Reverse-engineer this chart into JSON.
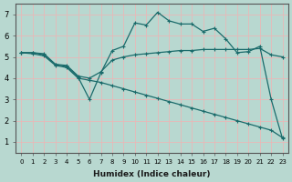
{
  "xlabel": "Humidex (Indice chaleur)",
  "xlim": [
    -0.5,
    23.5
  ],
  "ylim": [
    0.5,
    7.5
  ],
  "yticks": [
    1,
    2,
    3,
    4,
    5,
    6,
    7
  ],
  "xticks": [
    0,
    1,
    2,
    3,
    4,
    5,
    6,
    7,
    8,
    9,
    10,
    11,
    12,
    13,
    14,
    15,
    16,
    17,
    18,
    19,
    20,
    21,
    22,
    23
  ],
  "bg_color": "#b8d8d0",
  "grid_color": "#e8b8b8",
  "line_color": "#1a6b6b",
  "lines": [
    {
      "x": [
        0,
        1,
        2,
        3,
        4,
        5,
        6,
        7,
        8,
        9,
        10,
        11,
        12,
        13,
        14,
        15,
        16,
        17,
        18,
        19,
        20,
        21,
        22,
        23
      ],
      "y": [
        5.2,
        5.2,
        5.1,
        4.65,
        4.6,
        4.1,
        4.0,
        4.3,
        4.85,
        5.0,
        5.1,
        5.15,
        5.2,
        5.25,
        5.3,
        5.3,
        5.35,
        5.35,
        5.35,
        5.35,
        5.35,
        5.4,
        5.1,
        5.0
      ]
    },
    {
      "x": [
        0,
        1,
        2,
        3,
        4,
        5,
        6,
        7,
        8,
        9,
        10,
        11,
        12,
        13,
        14,
        15,
        16,
        17,
        18,
        19,
        20,
        21,
        22,
        23
      ],
      "y": [
        5.2,
        5.2,
        5.15,
        4.65,
        4.55,
        4.05,
        3.0,
        4.25,
        5.3,
        5.5,
        6.6,
        6.5,
        7.1,
        6.7,
        6.55,
        6.55,
        6.2,
        6.35,
        5.85,
        5.2,
        5.25,
        5.5,
        3.0,
        1.15
      ]
    },
    {
      "x": [
        0,
        1,
        2,
        3,
        4,
        5,
        6,
        7,
        8,
        9,
        10,
        11,
        12,
        13,
        14,
        15,
        16,
        17,
        18,
        19,
        20,
        21,
        22,
        23
      ],
      "y": [
        5.2,
        5.15,
        5.05,
        4.6,
        4.5,
        4.0,
        3.9,
        3.8,
        3.65,
        3.5,
        3.35,
        3.2,
        3.05,
        2.9,
        2.75,
        2.6,
        2.45,
        2.3,
        2.15,
        2.0,
        1.85,
        1.7,
        1.55,
        1.2
      ]
    }
  ],
  "marker": "+"
}
